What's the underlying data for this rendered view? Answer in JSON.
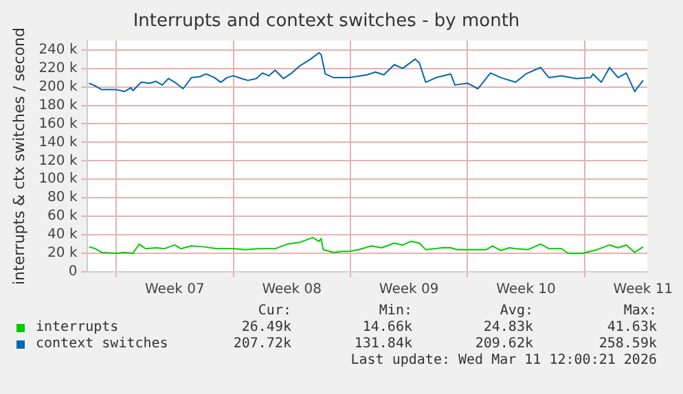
{
  "chart_data": {
    "type": "line",
    "title": "Interrupts and context switches - by month",
    "ylabel": "interrupts & ctx switches / second",
    "xlim": [
      "2026-02-07T06:00",
      "2026-03-12T18:00"
    ],
    "xticks": [
      {
        "value": "2026-02-09",
        "label": null
      },
      {
        "value": "2026-02-12T12:00",
        "label": "Week 07"
      },
      {
        "value": "2026-02-16",
        "label": null
      },
      {
        "value": "2026-02-19T12:00",
        "label": "Week 08"
      },
      {
        "value": "2026-02-23",
        "label": null
      },
      {
        "value": "2026-02-26T12:00",
        "label": "Week 09"
      },
      {
        "value": "2026-03-02",
        "label": null
      },
      {
        "value": "2026-03-05T12:00",
        "label": "Week 10"
      },
      {
        "value": "2026-03-09",
        "label": null
      },
      {
        "value": "2026-03-12T12:00",
        "label": "Week 11"
      }
    ],
    "ylim": [
      0,
      250000
    ],
    "yticks": [
      {
        "value": 0,
        "label": "0"
      },
      {
        "value": 20000,
        "label": "20 k"
      },
      {
        "value": 40000,
        "label": "40 k"
      },
      {
        "value": 60000,
        "label": "60 k"
      },
      {
        "value": 80000,
        "label": "80 k"
      },
      {
        "value": 100000,
        "label": "100 k"
      },
      {
        "value": 120000,
        "label": "120 k"
      },
      {
        "value": 140000,
        "label": "140 k"
      },
      {
        "value": 160000,
        "label": "160 k"
      },
      {
        "value": 180000,
        "label": "180 k"
      },
      {
        "value": 200000,
        "label": "200 k"
      },
      {
        "value": 220000,
        "label": "220 k"
      },
      {
        "value": 240000,
        "label": "240 k"
      }
    ],
    "grid": true,
    "legend": "bottom",
    "series": [
      {
        "name": "interrupts",
        "color": "#00cc00",
        "x": [
          "2026-02-07T09:00",
          "2026-02-07T18:00",
          "2026-02-08T03:00",
          "2026-02-09T00:00",
          "2026-02-09T12:00",
          "2026-02-10T00:00",
          "2026-02-10T09:00",
          "2026-02-10T18:00",
          "2026-02-11T09:00",
          "2026-02-11T21:00",
          "2026-02-12T12:00",
          "2026-02-12T21:00",
          "2026-02-13T12:00",
          "2026-02-14T06:00",
          "2026-02-15T00:00",
          "2026-02-16T00:00",
          "2026-02-16T18:00",
          "2026-02-17T12:00",
          "2026-02-18T12:00",
          "2026-02-19T06:00",
          "2026-02-20T00:00",
          "2026-02-20T18:00",
          "2026-02-21T03:00",
          "2026-02-21T06:00",
          "2026-02-21T09:00",
          "2026-02-22T00:00",
          "2026-02-22T12:00",
          "2026-02-22T21:00",
          "2026-02-23T12:00",
          "2026-02-24T06:00",
          "2026-02-24T21:00",
          "2026-02-25T15:00",
          "2026-02-26T03:00",
          "2026-02-26T15:00",
          "2026-02-27T03:00",
          "2026-02-27T12:00",
          "2026-02-28T12:00",
          "2026-03-01T00:00",
          "2026-03-01T09:00",
          "2026-03-02T00:00",
          "2026-03-03T03:00",
          "2026-03-03T12:00",
          "2026-03-04T00:00",
          "2026-03-04T12:00",
          "2026-03-04T21:00",
          "2026-03-05T15:00",
          "2026-03-06T09:00",
          "2026-03-06T21:00",
          "2026-03-07T15:00",
          "2026-03-08T00:00",
          "2026-03-08T21:00",
          "2026-03-09T18:00",
          "2026-03-10T12:00",
          "2026-03-11T00:00",
          "2026-03-11T12:00",
          "2026-03-12T00:00",
          "2026-03-12T12:00"
        ],
        "values": [
          27000,
          25000,
          21000,
          20000,
          21000,
          20000,
          30000,
          25000,
          26000,
          25000,
          29000,
          25000,
          28000,
          27000,
          25000,
          25000,
          24000,
          25000,
          25000,
          30000,
          32000,
          37000,
          33000,
          36000,
          24000,
          21000,
          22000,
          22000,
          24000,
          28000,
          26000,
          31000,
          29000,
          33000,
          31000,
          24000,
          26000,
          26000,
          24000,
          24000,
          24000,
          28000,
          23000,
          26000,
          25000,
          24000,
          30000,
          25000,
          25000,
          20000,
          20000,
          24000,
          29000,
          26000,
          29000,
          21000,
          27000
        ]
      },
      {
        "name": "context switches",
        "color": "#0066b3",
        "x": [
          "2026-02-07T09:00",
          "2026-02-07T18:00",
          "2026-02-08T03:00",
          "2026-02-09T00:00",
          "2026-02-09T12:00",
          "2026-02-09T21:00",
          "2026-02-10T00:00",
          "2026-02-10T12:00",
          "2026-02-11T00:00",
          "2026-02-11T09:00",
          "2026-02-11T18:00",
          "2026-02-12T03:00",
          "2026-02-12T12:00",
          "2026-02-13T00:00",
          "2026-02-13T12:00",
          "2026-02-14T00:00",
          "2026-02-14T09:00",
          "2026-02-14T21:00",
          "2026-02-15T06:00",
          "2026-02-15T15:00",
          "2026-02-16T00:00",
          "2026-02-16T12:00",
          "2026-02-16T21:00",
          "2026-02-17T09:00",
          "2026-02-17T18:00",
          "2026-02-18T03:00",
          "2026-02-18T12:00",
          "2026-02-19T00:00",
          "2026-02-19T12:00",
          "2026-02-20T00:00",
          "2026-02-20T15:00",
          "2026-02-21T03:00",
          "2026-02-21T06:00",
          "2026-02-21T12:00",
          "2026-02-22T00:00",
          "2026-02-22T21:00",
          "2026-02-24T00:00",
          "2026-02-24T12:00",
          "2026-02-25T00:00",
          "2026-02-25T15:00",
          "2026-02-26T03:00",
          "2026-02-26T21:00",
          "2026-02-27T03:00",
          "2026-02-27T12:00",
          "2026-02-28T03:00",
          "2026-03-01T00:00",
          "2026-03-01T06:00",
          "2026-03-02T00:00",
          "2026-03-02T15:00",
          "2026-03-03T09:00",
          "2026-03-04T00:00",
          "2026-03-04T21:00",
          "2026-03-05T12:00",
          "2026-03-06T09:00",
          "2026-03-06T21:00",
          "2026-03-07T15:00",
          "2026-03-08T12:00",
          "2026-03-09T09:00",
          "2026-03-09T12:00",
          "2026-03-10T00:00",
          "2026-03-10T12:00",
          "2026-03-11T00:00",
          "2026-03-11T12:00",
          "2026-03-12T00:00",
          "2026-03-12T06:00",
          "2026-03-12T12:00"
        ],
        "values": [
          204000,
          201000,
          197000,
          197000,
          195000,
          199000,
          196000,
          205000,
          204000,
          206000,
          202000,
          209000,
          205000,
          198000,
          210000,
          211000,
          214000,
          210000,
          205000,
          210000,
          212000,
          209000,
          207000,
          209000,
          215000,
          212000,
          218000,
          209000,
          215000,
          223000,
          230000,
          237000,
          235000,
          214000,
          210000,
          210000,
          213000,
          216000,
          213000,
          224000,
          220000,
          230000,
          226000,
          205000,
          210000,
          214000,
          202000,
          204000,
          198000,
          215000,
          210000,
          205000,
          214000,
          221000,
          210000,
          212000,
          209000,
          210000,
          214000,
          205000,
          221000,
          210000,
          215000,
          195000,
          201000,
          207000
        ]
      }
    ],
    "annotations": [
      "Cur:",
      "Min:",
      "Avg:",
      "Max:",
      "26.49k",
      "14.66k",
      "24.83k",
      "41.63k",
      "207.72k",
      "131.84k",
      "209.62k",
      "258.59k",
      "Last update: Wed Mar 11 12:00:21 2026"
    ]
  }
}
